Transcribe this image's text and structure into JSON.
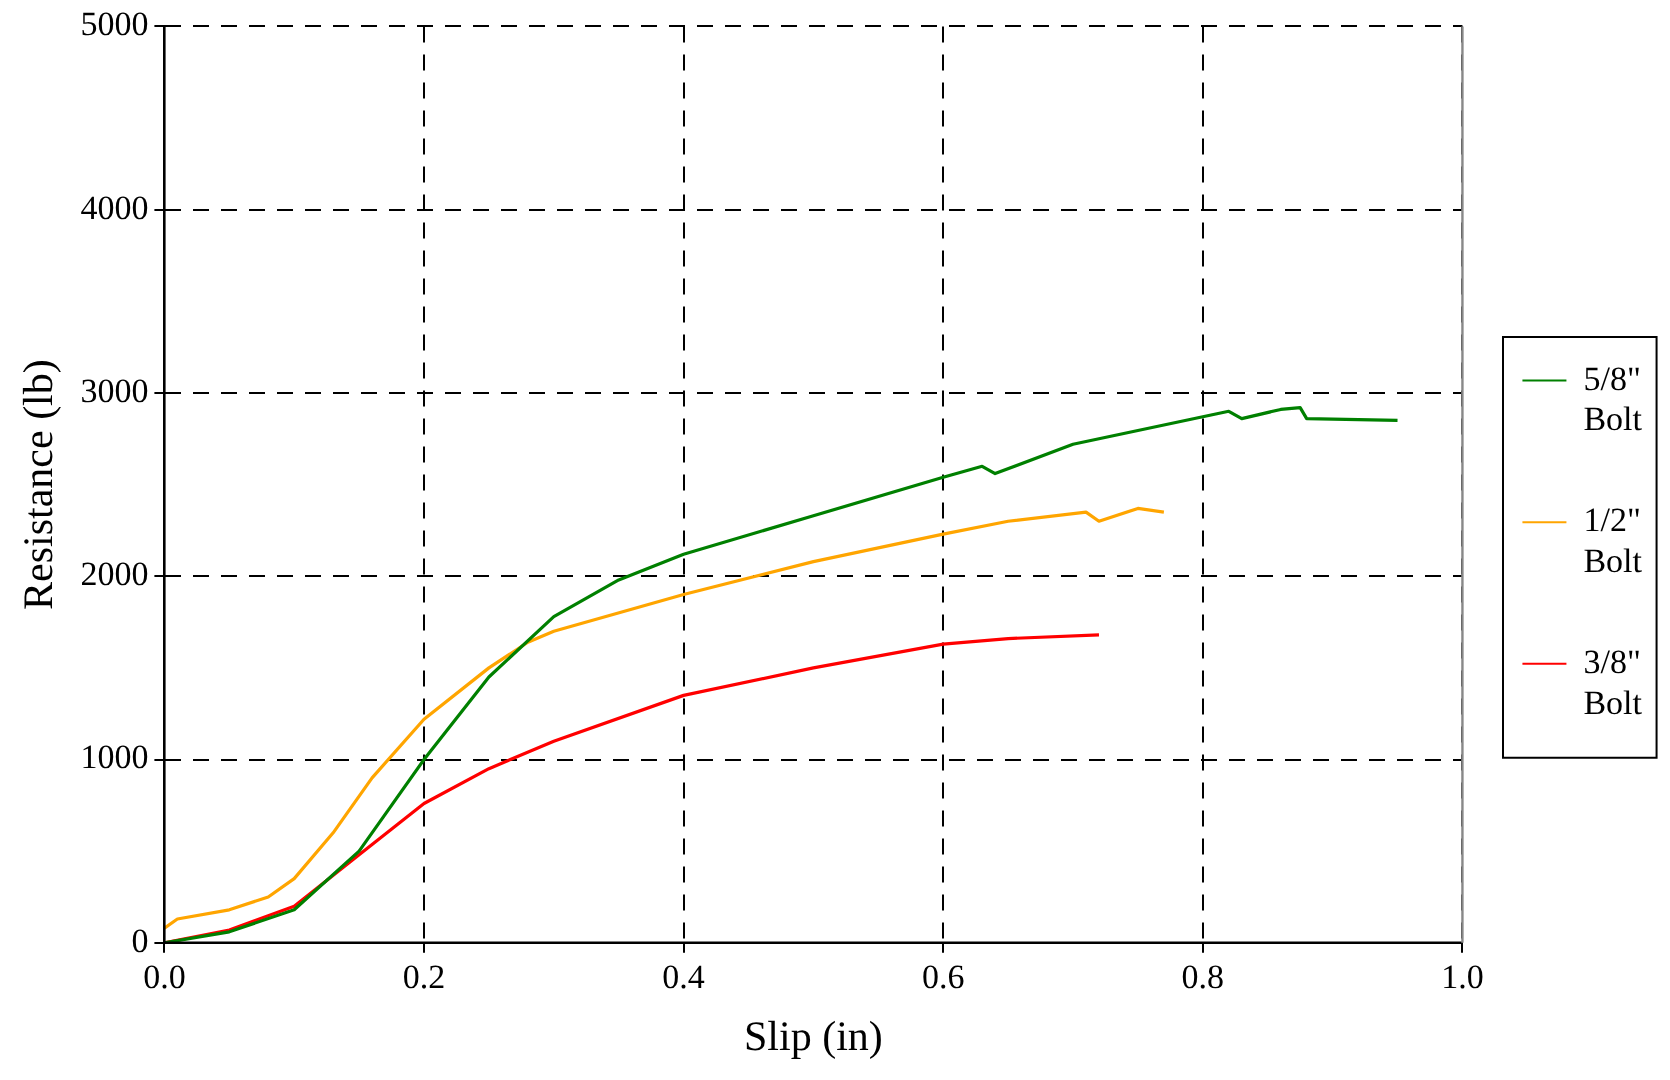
{
  "chart_data": {
    "type": "line",
    "xlabel": "Slip (in)",
    "ylabel": "Resistance (lb)",
    "xlim": [
      0,
      1
    ],
    "xticks": [
      {
        "value": 0,
        "label": "0.0"
      },
      0.2,
      0.4,
      0.6,
      0.8,
      {
        "value": 1,
        "label": "1.0"
      }
    ],
    "ylim": [
      0,
      5000
    ],
    "yticks": [
      0,
      1000,
      2000,
      3000,
      4000,
      5000
    ],
    "grid": true,
    "legend": "right",
    "marker": "none",
    "line_style": "solid",
    "series": [
      {
        "name": "5/8\" Bolt",
        "color": "#008000",
        "x": [
          0,
          0.05,
          0.1,
          0.15,
          0.2,
          0.25,
          0.3,
          0.35,
          0.4,
          0.5,
          0.6,
          0.63,
          0.64,
          0.7,
          0.8,
          0.82,
          0.83,
          0.86,
          0.875,
          0.88,
          0.95
        ],
        "values": [
          0,
          60,
          180,
          500,
          1000,
          1450,
          1780,
          1980,
          2120,
          2330,
          2540,
          2600,
          2560,
          2720,
          2870,
          2900,
          2860,
          2910,
          2920,
          2860,
          2850
        ]
      },
      {
        "name": "1/2\" Bolt",
        "color": "#ffa500",
        "x": [
          0,
          0.01,
          0.05,
          0.08,
          0.1,
          0.13,
          0.16,
          0.2,
          0.25,
          0.28,
          0.3,
          0.4,
          0.5,
          0.6,
          0.65,
          0.71,
          0.72,
          0.75,
          0.77
        ],
        "values": [
          80,
          130,
          180,
          250,
          350,
          600,
          900,
          1220,
          1500,
          1640,
          1700,
          1900,
          2080,
          2230,
          2300,
          2350,
          2300,
          2370,
          2350
        ]
      },
      {
        "name": "3/8\" Bolt",
        "color": "#ff0000",
        "x": [
          0,
          0.05,
          0.1,
          0.15,
          0.2,
          0.25,
          0.3,
          0.4,
          0.5,
          0.6,
          0.65,
          0.72
        ],
        "values": [
          0,
          70,
          200,
          480,
          760,
          950,
          1100,
          1350,
          1500,
          1630,
          1660,
          1680
        ]
      }
    ]
  }
}
